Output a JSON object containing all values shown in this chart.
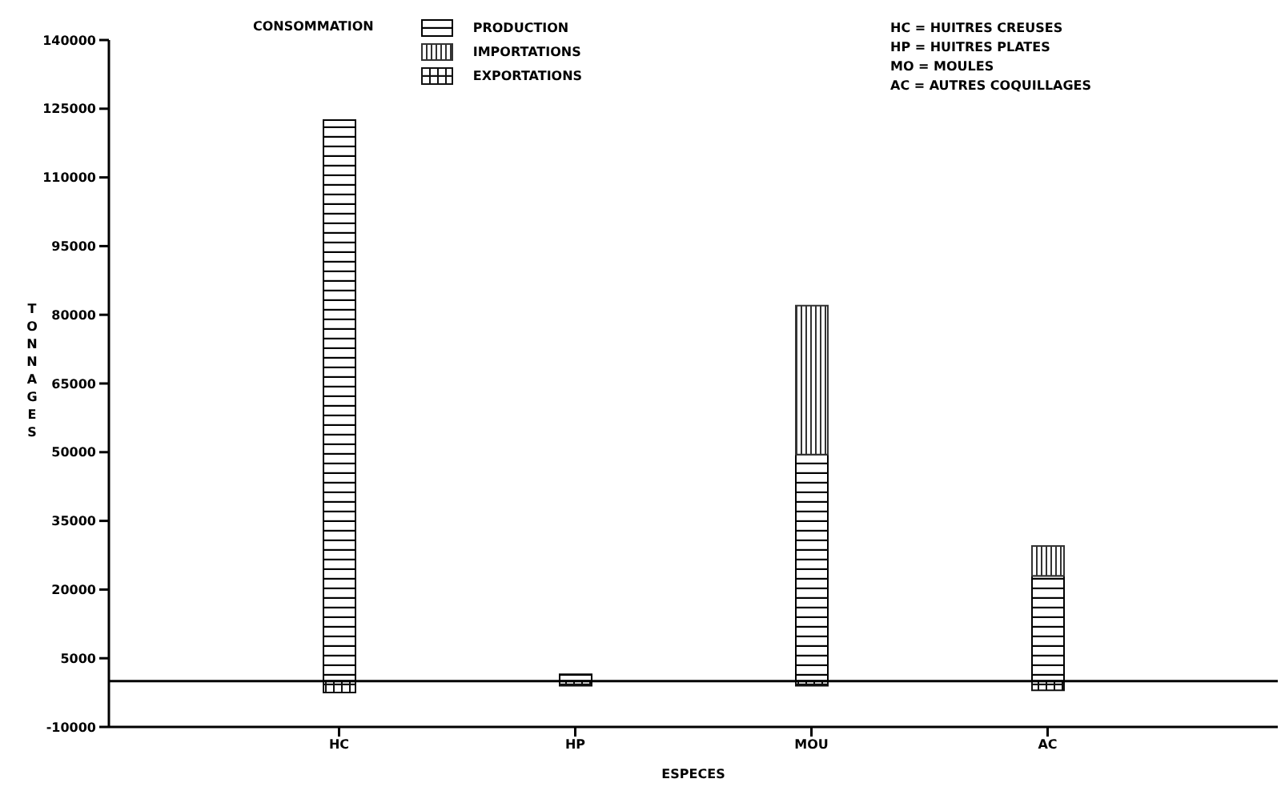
{
  "chart_data": {
    "type": "bar",
    "stacked": true,
    "xlabel": "ESPECES",
    "ylabel": "TONNAGES",
    "legend_title": "CONSOMMATION",
    "legend": "top",
    "categories": [
      "HC",
      "HP",
      "MOU",
      "AC"
    ],
    "series": [
      {
        "name": "PRODUCTION",
        "color": "#000000",
        "values": [
          122500,
          1500,
          49500,
          23000
        ]
      },
      {
        "name": "IMPORTATIONS",
        "color": "#333333",
        "values": [
          0,
          0,
          32500,
          6500
        ]
      },
      {
        "name": "EXPORTATIONS",
        "color": "#111111",
        "values": [
          -2500,
          -1000,
          -1000,
          -2000
        ]
      }
    ],
    "ylim": [
      -10000,
      140000
    ],
    "yticks": [
      -10000,
      5000,
      20000,
      35000,
      50000,
      65000,
      80000,
      95000,
      110000,
      125000,
      140000
    ],
    "ref_lines": [
      {
        "axis": "y",
        "value": 0
      }
    ],
    "annotations": [
      "HC = HUITRES CREUSES",
      "HP = HUITRES PLATES",
      "MO = MOULES",
      "AC = AUTRES COQUILLAGES"
    ]
  }
}
